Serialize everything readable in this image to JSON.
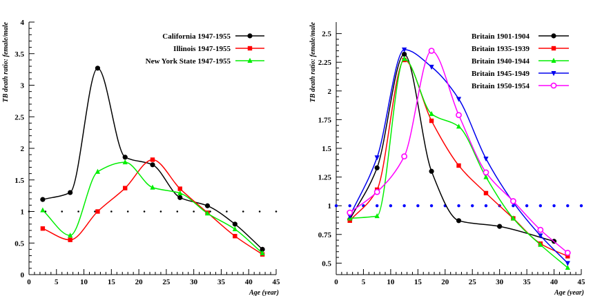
{
  "chart_data": [
    {
      "type": "line",
      "title": "",
      "xlabel": "Age (year)",
      "ylabel": "TB death ratio: female/male",
      "xlim": [
        0,
        45
      ],
      "ylim": [
        0,
        4
      ],
      "xticks": [
        0,
        5,
        10,
        15,
        20,
        25,
        30,
        35,
        40,
        45
      ],
      "yticks": [
        0,
        0.5,
        1,
        1.5,
        2,
        2.5,
        3,
        3.5,
        4
      ],
      "ytick_labels": [
        "0",
        "0.5",
        "1",
        "1.5",
        "2",
        "2.5",
        "3",
        "3.5",
        "4"
      ],
      "legend_position": "top-right",
      "reference_line": {
        "y": 1,
        "style": "dotted",
        "color": "#000000",
        "x": [
          0,
          3,
          6,
          9,
          12,
          15,
          18,
          21,
          24,
          27,
          30,
          33,
          36,
          39,
          42,
          45
        ]
      },
      "series": [
        {
          "name": "California 1947-1955",
          "color": "#000000",
          "marker": "circle",
          "x": [
            2.5,
            7.5,
            12.5,
            17.5,
            22.5,
            27.5,
            32.5,
            37.5,
            42.5
          ],
          "y": [
            1.19,
            1.3,
            3.27,
            1.86,
            1.74,
            1.22,
            1.09,
            0.8,
            0.4
          ]
        },
        {
          "name": "Illinois 1947-1955",
          "color": "#ff0000",
          "marker": "square",
          "x": [
            2.5,
            7.5,
            12.5,
            17.5,
            22.5,
            27.5,
            32.5,
            37.5,
            42.5
          ],
          "y": [
            0.73,
            0.55,
            1.0,
            1.37,
            1.82,
            1.36,
            0.98,
            0.61,
            0.32
          ]
        },
        {
          "name": "New York State 1947-1955",
          "color": "#00ee00",
          "marker": "triangle-up",
          "x": [
            2.5,
            7.5,
            12.5,
            17.5,
            22.5,
            27.5,
            32.5,
            37.5,
            42.5
          ],
          "y": [
            1.02,
            0.62,
            1.63,
            1.78,
            1.38,
            1.29,
            0.97,
            0.72,
            0.34
          ]
        }
      ]
    },
    {
      "type": "line",
      "title": "",
      "xlabel": "Age (year)",
      "ylabel": "TB death ratio: female/male",
      "xlim": [
        0,
        45
      ],
      "ylim": [
        0.4,
        2.6
      ],
      "xticks": [
        0,
        5,
        10,
        15,
        20,
        25,
        30,
        35,
        40,
        45
      ],
      "yticks": [
        0.5,
        0.75,
        1,
        1.25,
        1.5,
        1.75,
        2,
        2.25,
        2.5
      ],
      "ytick_labels": [
        "0.5",
        "0.75",
        "1",
        "1.25",
        "1.5",
        "1.75",
        "2",
        "2.25",
        "2.5"
      ],
      "legend_position": "top-right",
      "reference_line": {
        "y": 1,
        "style": "dotted",
        "color": "#0000ff",
        "x": [
          0,
          2.5,
          5,
          7.5,
          10,
          12.5,
          15,
          17.5,
          20,
          22.5,
          25,
          27.5,
          30,
          32.5,
          35,
          37.5,
          40,
          42.5,
          45
        ]
      },
      "series": [
        {
          "name": "Britain 1901-1904",
          "color": "#000000",
          "marker": "circle",
          "x": [
            2.5,
            7.5,
            12.5,
            17.5,
            22.5,
            30,
            40
          ],
          "y": [
            0.88,
            1.33,
            2.32,
            1.3,
            0.87,
            0.82,
            0.69
          ]
        },
        {
          "name": "Britain 1935-1939",
          "color": "#ff0000",
          "marker": "square",
          "x": [
            2.5,
            7.5,
            12.5,
            17.5,
            22.5,
            27.5,
            32.5,
            37.5,
            42.5
          ],
          "y": [
            0.87,
            1.14,
            2.27,
            1.74,
            1.35,
            1.11,
            0.89,
            0.67,
            0.56
          ]
        },
        {
          "name": "Britain 1940-1944",
          "color": "#00ee00",
          "marker": "triangle-up",
          "x": [
            2.5,
            7.5,
            12.5,
            17.5,
            22.5,
            27.5,
            32.5,
            37.5,
            42.5
          ],
          "y": [
            0.89,
            0.91,
            2.28,
            1.8,
            1.69,
            1.25,
            0.89,
            0.66,
            0.46
          ]
        },
        {
          "name": "Britain 1945-1949",
          "color": "#0000ee",
          "marker": "triangle-down",
          "x": [
            2.5,
            7.5,
            12.5,
            17.5,
            22.5,
            27.5,
            32.5,
            37.5,
            42.5
          ],
          "y": [
            0.91,
            1.42,
            2.36,
            2.21,
            1.93,
            1.41,
            1.03,
            0.74,
            0.5
          ]
        },
        {
          "name": "Britain 1950-1954",
          "color": "#ff00ff",
          "marker": "open-circle",
          "x": [
            2.5,
            7.5,
            12.5,
            17.5,
            22.5,
            27.5,
            32.5,
            37.5,
            42.5
          ],
          "y": [
            0.94,
            1.12,
            1.43,
            2.35,
            1.79,
            1.29,
            1.04,
            0.79,
            0.59
          ]
        }
      ]
    }
  ]
}
